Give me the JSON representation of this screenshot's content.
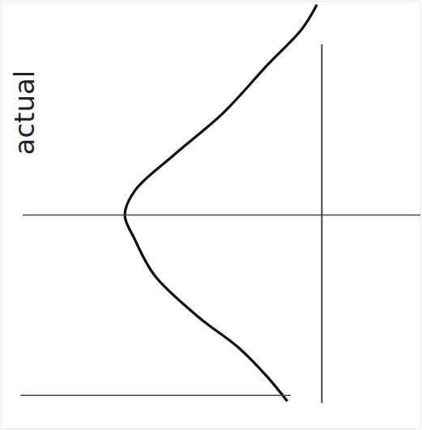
{
  "chart_data": {
    "type": "line",
    "orientation": "horizontal",
    "x": [
      -3.5,
      -3.1,
      -2.5,
      -1.7,
      -1.0,
      -0.4,
      0,
      0.4,
      1.0,
      1.7,
      2.2,
      2.7,
      3.1
    ],
    "values": [
      0.01,
      0.04,
      0.11,
      0.2,
      0.3,
      0.38,
      0.4,
      0.38,
      0.34,
      0.25,
      0.17,
      0.11,
      0.07
    ],
    "color": "#111111",
    "xlim": [
      3.55,
      -3.55
    ],
    "ylim": [
      0.65,
      -0.2
    ],
    "tick_labels": false,
    "grid": false,
    "lines": [
      {
        "x": 0,
        "label": "actual"
      },
      {
        "x": 3
      },
      {
        "y": 0
      }
    ]
  }
}
